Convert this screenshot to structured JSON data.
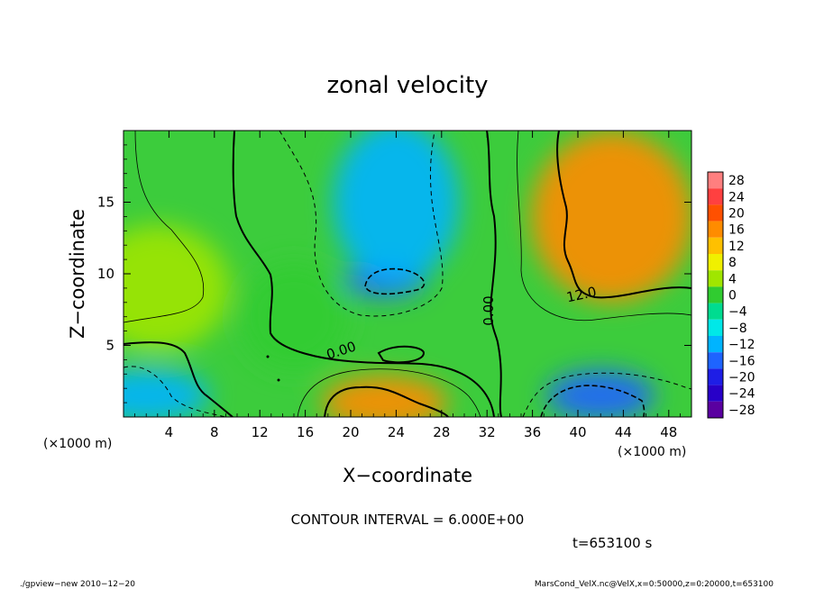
{
  "chart_data": {
    "type": "heatmap",
    "title": "zonal velocity",
    "xlabel": "X−coordinate",
    "ylabel": "Z−coordinate",
    "x_unit": "(×1000 m)",
    "y_unit": "(×1000 m)",
    "xlim": [
      0,
      50
    ],
    "ylim": [
      0,
      20
    ],
    "x_ticks": [
      4,
      8,
      12,
      16,
      20,
      24,
      28,
      32,
      36,
      40,
      44,
      48
    ],
    "y_ticks": [
      5,
      10,
      15
    ],
    "x_tick_labels": [
      "4",
      "8",
      "12",
      "16",
      "20",
      "24",
      "28",
      "32",
      "36",
      "40",
      "44",
      "48"
    ],
    "y_tick_labels": [
      "5",
      "10",
      "15"
    ],
    "colorbar": {
      "levels": [
        28,
        24,
        20,
        16,
        12,
        8,
        4,
        0,
        -4,
        -8,
        -12,
        -16,
        -20,
        -24,
        -28
      ],
      "labels": [
        "28",
        "24",
        "20",
        "16",
        "12",
        "8",
        "4",
        "0",
        "−4",
        "−8",
        "−12",
        "−16",
        "−20",
        "−24",
        "−28"
      ],
      "colors": [
        "#ff7f7f",
        "#ff4040",
        "#ff5000",
        "#ff8c00",
        "#ffc000",
        "#f0f000",
        "#a0e600",
        "#30cc30",
        "#00dc90",
        "#00e8e8",
        "#00b4ff",
        "#1e64ff",
        "#1e1ee6",
        "#2800c8",
        "#5a00a0"
      ]
    },
    "contour_labels": [
      "0.00",
      "0.00",
      "12.0"
    ],
    "features": [
      {
        "kind": "positive-max",
        "x": 43,
        "z": 14,
        "value": 16
      },
      {
        "kind": "positive-max",
        "x": 23,
        "z": 1,
        "value": 16
      },
      {
        "kind": "negative-min",
        "x": 23,
        "z": 9.5,
        "value": -14
      },
      {
        "kind": "negative-min",
        "x": 42,
        "z": 1.5,
        "value": -14
      },
      {
        "kind": "negative",
        "x": 24,
        "z": 15,
        "value": -9
      },
      {
        "kind": "positive",
        "x": 3,
        "z": 9,
        "value": 7
      },
      {
        "kind": "positive",
        "x": 15,
        "z": 7,
        "value": 3
      },
      {
        "kind": "negative",
        "x": 2,
        "z": 1.5,
        "value": -9
      }
    ],
    "contour_interval_text": "CONTOUR INTERVAL = 6.000E+00",
    "time_text": "t=653100 s"
  },
  "footer": {
    "left": "./gpview−new  2010−12−20",
    "right": "MarsCond_VelX.nc@VelX,x=0:50000,z=0:20000,t=653100"
  }
}
